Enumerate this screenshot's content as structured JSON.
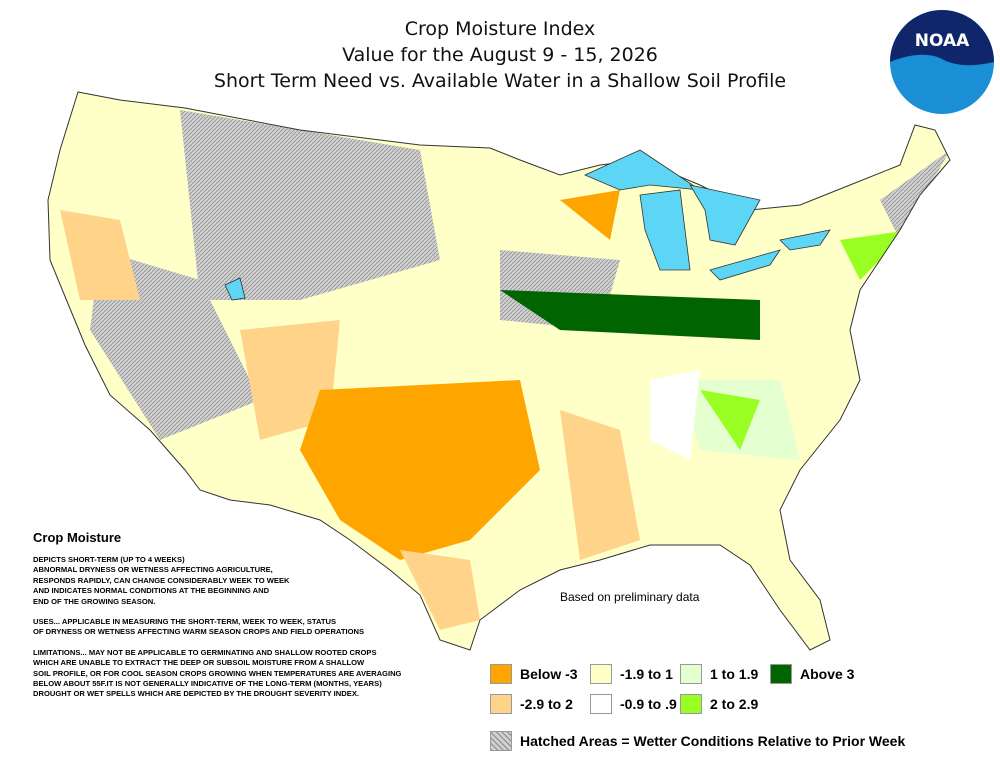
{
  "header": {
    "title_lines": [
      "Crop Moisture Index",
      "Value for the August 9 - 15, 2026",
      "Short Term Need vs. Available Water in a Shallow Soil Profile"
    ],
    "logo": "NOAA"
  },
  "notes": {
    "heading": "Crop Moisture",
    "paragraphs": [
      [
        "DEPICTS SHORT-TERM (UP TO 4 WEEKS)",
        "ABNORMAL DRYNESS OR WETNESS AFFECTING AGRICULTURE,",
        "RESPONDS RAPIDLY, CAN CHANGE CONSIDERABLY WEEK TO WEEK",
        "AND INDICATES NORMAL CONDITIONS AT THE BEGINNING AND",
        "END OF THE GROWING SEASON."
      ],
      [
        "USES... APPLICABLE IN MEASURING THE SHORT-TERM, WEEK TO WEEK, STATUS",
        "OF DRYNESS OR WETNESS AFFECTING WARM SEASON CROPS AND FIELD OPERATIONS"
      ],
      [
        "LIMITATIONS... MAY NOT BE APPLICABLE TO GERMINATING AND SHALLOW ROOTED CROPS",
        "WHICH ARE UNABLE TO EXTRACT THE DEEP OR SUBSOIL MOISTURE FROM A SHALLOW",
        "SOIL PROFILE, OR FOR COOL SEASON CROPS GROWING WHEN TEMPERATURES ARE AVERAGING",
        "BELOW ABOUT 55F.IT IS NOT GENERALLY INDICATIVE OF THE LONG-TERM (MONTHS, YEARS)",
        "DROUGHT OR WET SPELLS WHICH ARE DEPICTED BY THE DROUGHT SEVERITY INDEX."
      ]
    ]
  },
  "map_note": "Based on preliminary data",
  "legend": {
    "items": [
      {
        "label": "Below -3",
        "color": "#ffa500"
      },
      {
        "label": "-2.9 to 2",
        "color": "#ffd38a"
      },
      {
        "label": "-1.9 to 1",
        "color": "#ffffc8"
      },
      {
        "label": "-0.9 to .9",
        "color": "#ffffff"
      },
      {
        "label": "1 to 1.9",
        "color": "#e4ffd0"
      },
      {
        "label": "2 to 2.9",
        "color": "#99ff22"
      },
      {
        "label": "Above 3",
        "color": "#006400"
      }
    ],
    "hatched": "Hatched Areas = Wetter Conditions Relative to Prior Week"
  }
}
